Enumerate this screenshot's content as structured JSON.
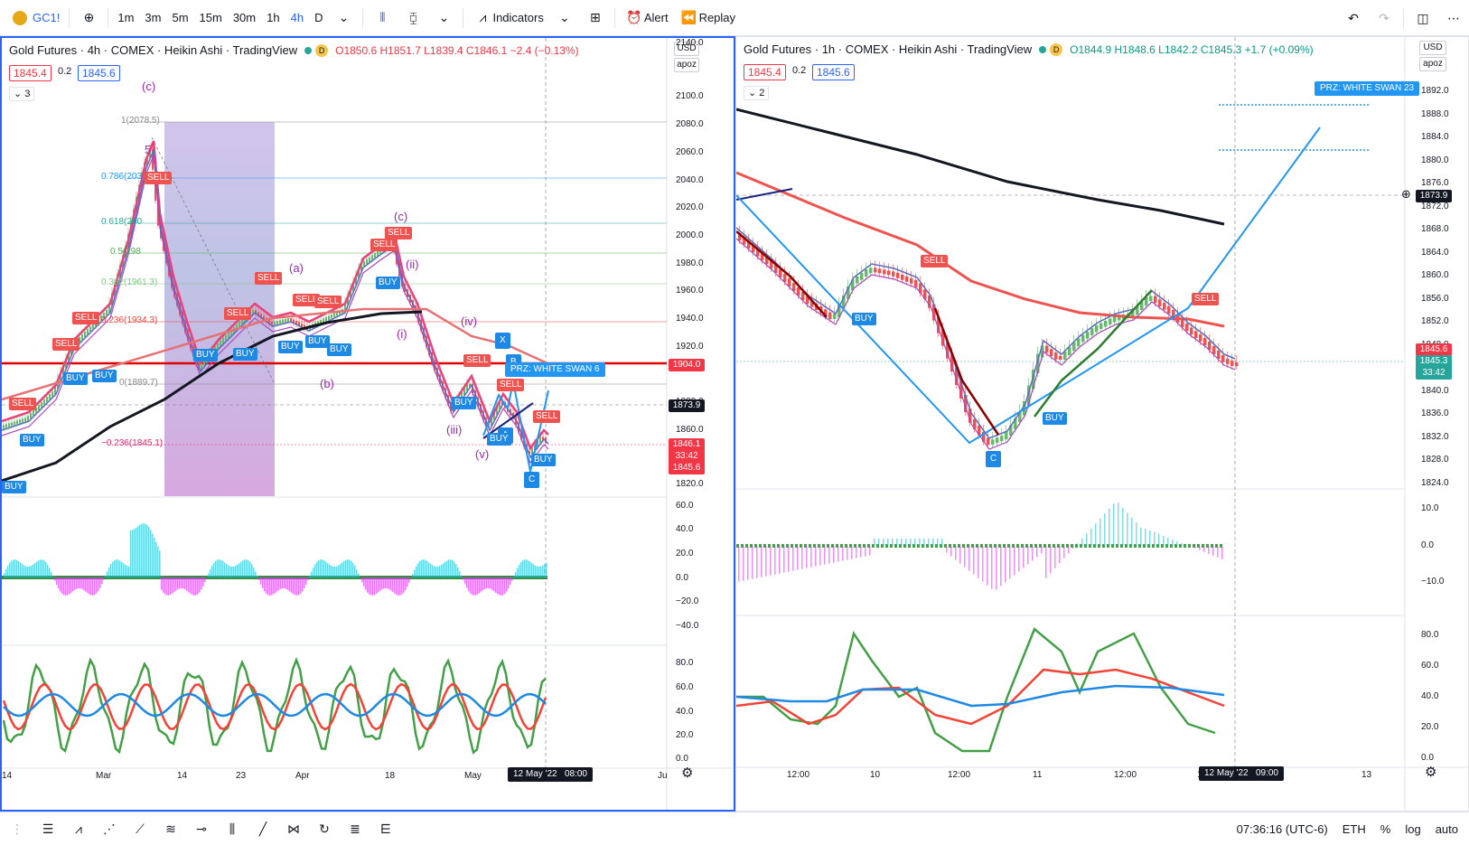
{
  "topbar": {
    "symbol": "GC1!",
    "add_icon": "plus-circle-icon",
    "intervals": [
      "1m",
      "3m",
      "5m",
      "15m",
      "30m",
      "1h",
      "4h",
      "D"
    ],
    "active_interval": "4h",
    "indicators_label": "Indicators",
    "alert_label": "Alert",
    "replay_label": "Replay"
  },
  "pane1": {
    "title": "Gold Futures · 4h · COMEX · Heikin Ashi · TradingView",
    "ohlc": "O1850.6 H1851.7 L1839.4 C1846.1 −2.4 (−0.13%)",
    "price_left": "1845.4",
    "spread": "0.2",
    "price_right": "1845.6",
    "collapse_count": "3",
    "currency": "USD",
    "scale_mode": "apoz",
    "y_ticks": [
      "2140.0",
      "2100.0",
      "2080.0",
      "2060.0",
      "2040.0",
      "2020.0",
      "2000.0",
      "1980.0",
      "1960.0",
      "1940.0",
      "1920.0",
      "1880.0",
      "1860.0",
      "1840.0",
      "1820.0"
    ],
    "price_line_label": "1904.0",
    "crosshair_label": "1873.9",
    "last_price": "1846.1",
    "countdown": "33:42",
    "bid": "1845.6",
    "osc_ticks": [
      "60.0",
      "40.0",
      "20.0",
      "0.0",
      "−20.0",
      "−40.0"
    ],
    "rsi_ticks": [
      "80.0",
      "60.0",
      "40.0",
      "20.0",
      "0.0"
    ],
    "x_labels": [
      "14",
      "Mar",
      "14",
      "23",
      "Apr",
      "18",
      "May",
      "Ju"
    ],
    "time_chip": "12 May '22",
    "time_chip_time": "08:00",
    "fib_levels": [
      "1(2078.5)",
      "0.786(203",
      "0.618(200",
      "0.5(198",
      "0.382(1961.3)",
      "0.236(1934.3)",
      "0(1889.7)",
      "−0.236(1845.1)"
    ],
    "wave_labels": [
      "(c)",
      "5",
      "(a)",
      "(c)",
      "(ii)",
      "(i)",
      "(iv)",
      "(b)",
      "(iii)",
      "(v)"
    ],
    "abc_labels": [
      "X",
      "B",
      "A",
      "C"
    ],
    "prz_label": "PRZ: WHITE SWAN 6",
    "buy_label": "BUY",
    "sell_label": "SELL"
  },
  "pane2": {
    "title": "Gold Futures · 1h · COMEX · Heikin Ashi · TradingView",
    "ohlc": "O1844.9 H1848.6 L1842.2 C1845.3 +1.7 (+0.09%)",
    "price_left": "1845.4",
    "spread": "0.2",
    "price_right": "1845.6",
    "collapse_count": "2",
    "currency": "USD",
    "scale_mode": "apoz",
    "y_ticks": [
      "1892.0",
      "1888.0",
      "1884.0",
      "1880.0",
      "1876.0",
      "1872.0",
      "1868.0",
      "1864.0",
      "1860.0",
      "1856.0",
      "1852.0",
      "1848.0",
      "1844.0",
      "1840.0",
      "1836.0",
      "1832.0",
      "1828.0",
      "1824.0"
    ],
    "crosshair_label": "1873.9",
    "last_price": "1845.6",
    "current": "1845.3",
    "countdown": "33:42",
    "osc_ticks": [
      "10.0",
      "0.0",
      "−10.0"
    ],
    "rsi_ticks": [
      "80.0",
      "60.0",
      "40.0",
      "20.0",
      "0.0"
    ],
    "x_labels": [
      "12:00",
      "10",
      "12:00",
      "11",
      "12:00",
      "12",
      "13"
    ],
    "time_chip": "12 May '22",
    "time_chip_time": "09:00",
    "prz_label": "PRZ: WHITE SWAN 23",
    "c_label": "C",
    "buy_label": "BUY",
    "sell_label": "SELL"
  },
  "bottombar": {
    "time": "07:36:16 (UTC-6)",
    "session": "ETH",
    "percent": "%",
    "log": "log",
    "auto": "auto"
  }
}
